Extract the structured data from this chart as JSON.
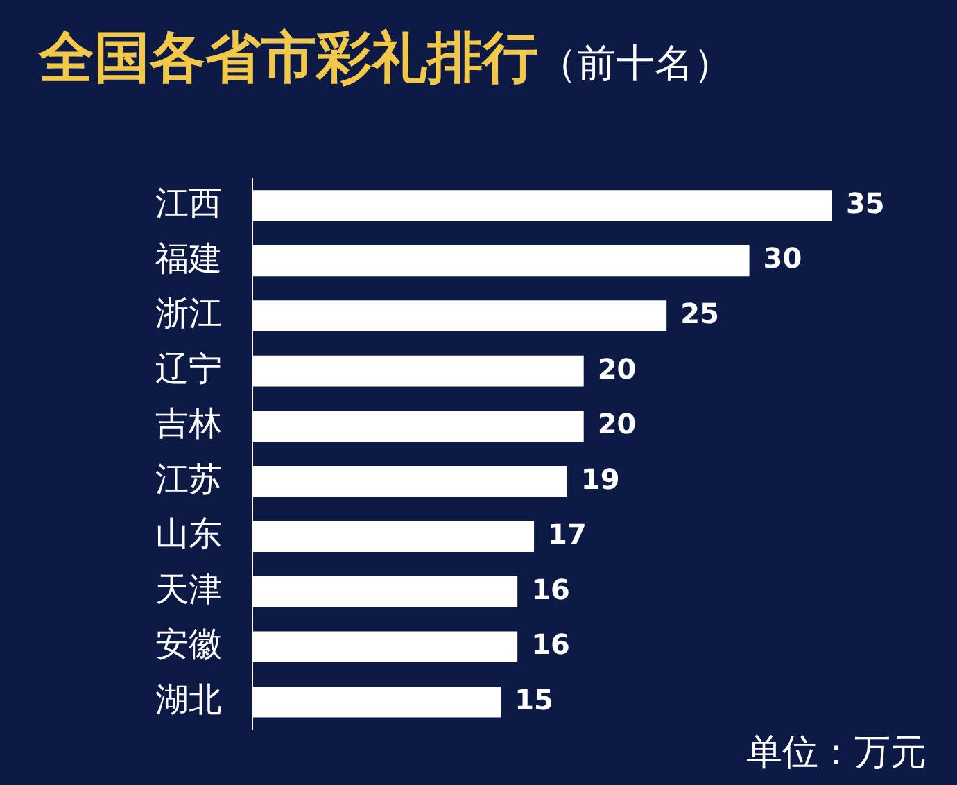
{
  "chart_data": {
    "type": "bar",
    "orientation": "horizontal",
    "title": "全国各省市彩礼排行",
    "subtitle": "（前十名）",
    "categories": [
      "江西",
      "福建",
      "浙江",
      "辽宁",
      "吉林",
      "江苏",
      "山东",
      "天津",
      "安徽",
      "湖北"
    ],
    "values": [
      35,
      30,
      25,
      20,
      20,
      19,
      17,
      16,
      16,
      15
    ],
    "color": "#ffffff",
    "data_labels": true,
    "legend": false,
    "annotations": [
      "单位：万元"
    ]
  }
}
